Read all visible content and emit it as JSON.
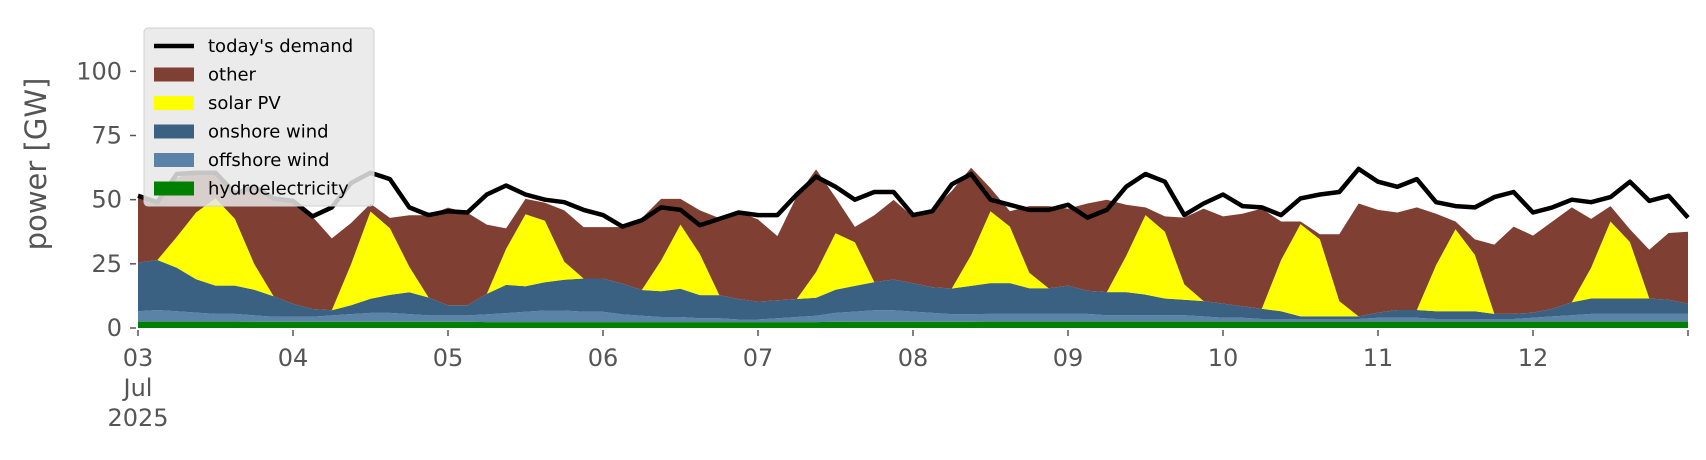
{
  "chart_data": {
    "type": "area",
    "ylabel": "power [GW]",
    "ylim": [
      0,
      120
    ],
    "yticks": [
      0,
      25,
      50,
      75,
      100
    ],
    "xlim_days": [
      3,
      13
    ],
    "x_ticks": [
      {
        "day": 3,
        "lines": [
          "03",
          "Jul",
          "2025"
        ]
      },
      {
        "day": 4,
        "lines": [
          "04"
        ]
      },
      {
        "day": 5,
        "lines": [
          "05"
        ]
      },
      {
        "day": 6,
        "lines": [
          "06"
        ]
      },
      {
        "day": 7,
        "lines": [
          "07"
        ]
      },
      {
        "day": 8,
        "lines": [
          "08"
        ]
      },
      {
        "day": 9,
        "lines": [
          "09"
        ]
      },
      {
        "day": 10,
        "lines": [
          "10"
        ]
      },
      {
        "day": 11,
        "lines": [
          "11"
        ]
      },
      {
        "day": 12,
        "lines": [
          "12"
        ]
      }
    ],
    "grid": false,
    "legend_position": "top-left",
    "hours": [
      0,
      3,
      6,
      9,
      12,
      15,
      18,
      21,
      24,
      27,
      30,
      33,
      36,
      39,
      42,
      45,
      48,
      51,
      54,
      57,
      60,
      63,
      66,
      69,
      72,
      75,
      78,
      81,
      84,
      87,
      90,
      93,
      96,
      99,
      102,
      105,
      108,
      111,
      114,
      117,
      120,
      123,
      126,
      129,
      132,
      135,
      138,
      141,
      144,
      147,
      150,
      153,
      156,
      159,
      162,
      165,
      168,
      171,
      174,
      177,
      180,
      183,
      186,
      189,
      192,
      195,
      198,
      201,
      204,
      207,
      210,
      213,
      216,
      219,
      222,
      225,
      228,
      231,
      234,
      237,
      240
    ],
    "series": [
      {
        "name": "hydroelectricity",
        "color": "#008000",
        "values": [
          2.5,
          2.5,
          2.5,
          2.5,
          2.5,
          2.5,
          2.4,
          2.4,
          2.4,
          2.4,
          2.4,
          2.4,
          2.4,
          2.4,
          2.4,
          2.4,
          2.4,
          2.4,
          2.3,
          2.3,
          2.3,
          2.3,
          2.3,
          2.3,
          2.3,
          2.3,
          2.3,
          2.3,
          2.3,
          2.3,
          2.3,
          2.3,
          2.3,
          2.3,
          2.3,
          2.3,
          2.4,
          2.4,
          2.4,
          2.4,
          2.4,
          2.4,
          2.4,
          2.4,
          2.5,
          2.5,
          2.5,
          2.5,
          2.5,
          2.5,
          2.5,
          2.5,
          2.5,
          2.5,
          2.5,
          2.5,
          2.5,
          2.5,
          2.5,
          2.5,
          2.5,
          2.5,
          2.5,
          2.5,
          2.5,
          2.5,
          2.5,
          2.5,
          2.5,
          2.5,
          2.5,
          2.5,
          2.5,
          2.5,
          2.5,
          2.5,
          2.5,
          2.5,
          2.5,
          2.5,
          2.5
        ]
      },
      {
        "name": "offshore wind",
        "color": "#5b83a8",
        "values": [
          4,
          4.5,
          4,
          3.5,
          3,
          3,
          2.5,
          2,
          2,
          2,
          2.5,
          3,
          3.5,
          3.5,
          3,
          2.5,
          2.5,
          2.5,
          3,
          3.5,
          4,
          4.5,
          4.5,
          4,
          4,
          3,
          2.5,
          2,
          2,
          1.5,
          1.5,
          1,
          1,
          1.5,
          2,
          2.5,
          3.5,
          4,
          4.5,
          4.5,
          4,
          3.5,
          3,
          3,
          3,
          3,
          3,
          3,
          3,
          3,
          2.5,
          2.5,
          2.5,
          2.5,
          2.5,
          2,
          1.5,
          1.5,
          1,
          1,
          1,
          1,
          1,
          1,
          1.5,
          1.5,
          1.5,
          1,
          1,
          1,
          1,
          1,
          1.5,
          2,
          2.5,
          3,
          3,
          3,
          3,
          3,
          3
        ]
      },
      {
        "name": "onshore wind",
        "color": "#3b6182",
        "values": [
          19,
          19.5,
          17,
          13,
          11,
          11,
          10,
          8,
          5,
          3,
          2,
          3.5,
          5.5,
          7,
          8.5,
          7,
          4,
          4,
          8,
          11,
          10,
          11,
          12,
          13,
          13,
          12,
          10,
          10,
          11,
          9,
          9,
          8,
          7,
          7,
          7,
          7,
          9,
          10,
          11,
          12,
          11,
          10,
          10,
          11,
          12,
          12,
          10,
          10,
          11,
          9,
          9,
          9,
          8,
          6.5,
          6,
          6,
          5.5,
          4.5,
          4,
          3,
          1,
          1,
          1,
          1,
          2,
          3,
          3,
          3,
          3,
          3,
          2,
          2,
          2,
          3,
          5,
          6,
          6,
          6,
          6,
          5.5,
          4
        ]
      },
      {
        "name": "solar PV",
        "color": "#ffff00",
        "values": [
          0,
          0,
          12,
          26,
          34,
          26,
          10,
          0,
          0,
          0,
          0,
          16,
          34,
          26,
          10,
          0,
          0,
          0,
          0,
          14,
          28,
          24,
          7,
          0,
          0,
          0,
          0,
          12,
          25,
          16,
          0,
          0,
          0,
          0,
          0,
          10,
          22,
          17,
          0,
          0,
          0,
          0,
          0,
          12,
          28,
          22,
          6,
          0,
          0,
          0,
          0,
          14,
          31,
          26,
          6,
          0,
          0,
          0,
          0,
          20,
          36,
          30,
          6,
          0,
          0,
          0,
          0,
          18,
          32,
          22,
          0,
          0,
          0,
          0,
          0,
          12,
          30,
          22,
          0,
          0,
          0
        ]
      },
      {
        "name": "other",
        "color": "#7f3f32",
        "values": [
          26,
          22,
          23,
          16,
          10,
          10,
          30,
          38,
          40,
          36,
          28,
          16,
          3,
          4,
          20,
          32,
          38,
          36,
          27,
          8,
          6,
          7,
          20,
          20,
          20,
          22,
          28,
          24,
          10,
          17,
          30,
          34,
          32,
          25,
          40,
          40,
          14,
          6,
          26,
          31,
          26,
          30,
          38,
          34,
          9,
          6,
          26,
          32,
          30,
          34,
          36,
          20,
          3,
          6,
          26,
          36,
          34,
          36,
          39,
          15,
          1,
          2,
          26,
          44,
          40,
          38,
          40,
          20,
          3,
          6,
          27,
          34,
          30,
          34,
          37,
          19,
          6,
          5,
          19,
          26,
          28
        ],
        "note_free": true
      }
    ],
    "demand": {
      "name": "today's demand",
      "color": "#000000",
      "values": [
        51.5,
        49,
        60,
        60.5,
        60.5,
        52.5,
        55,
        50.5,
        49.5,
        43.5,
        47,
        56.5,
        60.5,
        58,
        47,
        44,
        45.5,
        45,
        52,
        55.5,
        52,
        50,
        49,
        46,
        44,
        39.5,
        42,
        47,
        46,
        40,
        42.5,
        45,
        44,
        44,
        52,
        59,
        55,
        50,
        53,
        53,
        44,
        45.5,
        56,
        60,
        50,
        48,
        46,
        46,
        48,
        43,
        46,
        55,
        60,
        57,
        44,
        48.5,
        52,
        47.5,
        47,
        44,
        50.5,
        52,
        53,
        62,
        57,
        55,
        58,
        49,
        47.5,
        47,
        51,
        53,
        45,
        47,
        50,
        49,
        51,
        57,
        49.5,
        51.5,
        43
      ]
    }
  }
}
